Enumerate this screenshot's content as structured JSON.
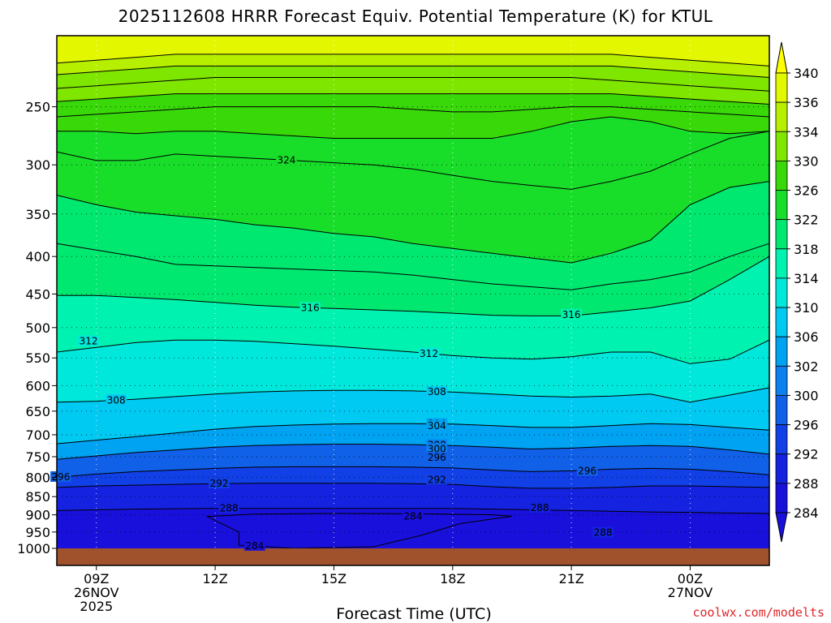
{
  "title": "2025112608 HRRR Forecast Equiv. Potential Temperature (K) for KTUL",
  "credit": "coolwx.com/modelts",
  "colors": {
    "ground": "#a0522d",
    "grid": "#000000",
    "contour": "#000000",
    "credit": "#e0262a"
  },
  "chart_data": {
    "type": "heatmap",
    "title": "2025112608 HRRR Forecast Equiv. Potential Temperature (K) for KTUL",
    "xlabel": "Forecast Time (UTC)",
    "ylabel": "",
    "y_scale": "log-pressure",
    "y_range_hpa": [
      1000,
      200
    ],
    "y_ticks": [
      250,
      300,
      350,
      400,
      450,
      500,
      550,
      600,
      650,
      700,
      750,
      800,
      850,
      900,
      950,
      1000
    ],
    "x_ticks": [
      {
        "hour": 1,
        "label": "09Z",
        "sub": [
          "26NOV",
          "2025"
        ]
      },
      {
        "hour": 4,
        "label": "12Z",
        "sub": []
      },
      {
        "hour": 7,
        "label": "15Z",
        "sub": []
      },
      {
        "hour": 10,
        "label": "18Z",
        "sub": []
      },
      {
        "hour": 13,
        "label": "21Z",
        "sub": []
      },
      {
        "hour": 16,
        "label": "00Z",
        "sub": [
          "27NOV"
        ]
      }
    ],
    "x_range_hours": [
      0,
      18
    ],
    "x": [
      0,
      1,
      2,
      3,
      4,
      5,
      6,
      7,
      8,
      9,
      10,
      11,
      12,
      13,
      14,
      15,
      16,
      17,
      18
    ],
    "colorbar": {
      "levels": [
        340,
        336,
        334,
        330,
        326,
        322,
        318,
        314,
        310,
        306,
        302,
        300,
        296,
        292,
        288,
        284
      ],
      "colors": [
        "#ffff00",
        "#e3f800",
        "#b7ef00",
        "#7fe600",
        "#39d909",
        "#18de2a",
        "#00e870",
        "#00f2b0",
        "#00e8dc",
        "#00c9f2",
        "#00a2f2",
        "#0b80ee",
        "#1060e8",
        "#1140e6",
        "#1522e0",
        "#1a10dc"
      ],
      "extend": "both"
    },
    "contour_lines": [
      {
        "theta": 288,
        "label": "288",
        "label_x": 4.35,
        "p": [
          888,
          886,
          884,
          883,
          882,
          882,
          882,
          882,
          882,
          882,
          882,
          884,
          886,
          888,
          890,
          892,
          893,
          895,
          896
        ]
      },
      {
        "theta": 292,
        "label": "292",
        "label_x": 4.1,
        "p": [
          826,
          822,
          820,
          818,
          816,
          815,
          815,
          815,
          815,
          816,
          818,
          824,
          828,
          828,
          826,
          822,
          822,
          824,
          826
        ]
      },
      {
        "theta": 296,
        "label": "296",
        "label_x": 0.1,
        "p": [
          800,
          792,
          786,
          782,
          778,
          775,
          774,
          774,
          774,
          775,
          777,
          782,
          786,
          784,
          780,
          778,
          780,
          786,
          794
        ]
      },
      {
        "theta": 300,
        "label": "300",
        "label_x": 9.6,
        "p": [
          756,
          748,
          740,
          734,
          728,
          724,
          722,
          721,
          721,
          722,
          724,
          728,
          732,
          730,
          726,
          724,
          726,
          734,
          744
        ]
      },
      {
        "theta": 304,
        "label": "304",
        "label_x": 9.6,
        "p": [
          720,
          712,
          704,
          696,
          688,
          682,
          679,
          677,
          676,
          676,
          677,
          680,
          684,
          684,
          680,
          676,
          678,
          684,
          690
        ]
      },
      {
        "theta": 308,
        "label": "308",
        "label_x": 1.5,
        "p": [
          632,
          630,
          626,
          621,
          616,
          612,
          610,
          609,
          609,
          610,
          612,
          616,
          620,
          622,
          620,
          616,
          632,
          618,
          604
        ]
      },
      {
        "theta": 312,
        "label": "312",
        "label_x": 9.4,
        "p": [
          540,
          532,
          524,
          520,
          520,
          522,
          526,
          530,
          535,
          540,
          546,
          550,
          552,
          548,
          540,
          540,
          560,
          552,
          520
        ]
      },
      {
        "theta": 316,
        "label": "316",
        "label_x": 6.4,
        "p": [
          452,
          452,
          455,
          458,
          462,
          466,
          469,
          471,
          473,
          475,
          478,
          481,
          482,
          482,
          476,
          470,
          460,
          430,
          400
        ]
      },
      {
        "theta": 320,
        "label": "",
        "label_x": -1,
        "p": [
          384,
          392,
          400,
          410,
          412,
          414,
          416,
          418,
          420,
          424,
          430,
          436,
          440,
          444,
          436,
          430,
          420,
          400,
          384
        ]
      },
      {
        "theta": 322,
        "label": "",
        "label_x": -1,
        "p": [
          330,
          340,
          348,
          352,
          356,
          362,
          366,
          372,
          376,
          384,
          390,
          396,
          402,
          408,
          396,
          380,
          340,
          322,
          316
        ]
      },
      {
        "theta": 324,
        "label": "324",
        "label_x": 5.8,
        "p": [
          288,
          296,
          296,
          290,
          292,
          294,
          296,
          298,
          300,
          304,
          310,
          316,
          320,
          324,
          316,
          306,
          290,
          276,
          270
        ]
      },
      {
        "theta": 326,
        "label": "",
        "label_x": -1,
        "p": [
          270,
          270,
          272,
          270,
          270,
          272,
          274,
          276,
          276,
          276,
          276,
          276,
          270,
          262,
          258,
          262,
          270,
          272,
          270
        ]
      },
      {
        "theta": 328,
        "label": "",
        "label_x": -1,
        "p": [
          258,
          256,
          254,
          252,
          250,
          250,
          250,
          250,
          250,
          252,
          254,
          254,
          252,
          250,
          250,
          252,
          254,
          256,
          258
        ]
      },
      {
        "theta": 330,
        "label": "",
        "label_x": -1,
        "p": [
          246,
          244,
          242,
          240,
          240,
          240,
          240,
          240,
          240,
          240,
          240,
          240,
          240,
          240,
          240,
          242,
          244,
          246,
          248
        ]
      },
      {
        "theta": 332,
        "label": "",
        "label_x": -1,
        "p": [
          236,
          234,
          232,
          230,
          228,
          228,
          228,
          228,
          228,
          228,
          228,
          228,
          228,
          228,
          230,
          232,
          234,
          236,
          238
        ]
      },
      {
        "theta": 334,
        "label": "",
        "label_x": -1,
        "p": [
          226,
          224,
          222,
          220,
          220,
          220,
          220,
          220,
          220,
          220,
          220,
          220,
          220,
          220,
          220,
          222,
          224,
          226,
          228
        ]
      },
      {
        "theta": 336,
        "label": "",
        "label_x": -1,
        "p": [
          218,
          216,
          214,
          212,
          212,
          212,
          212,
          212,
          212,
          212,
          212,
          212,
          212,
          212,
          212,
          214,
          216,
          218,
          220
        ]
      }
    ],
    "low_region_284": {
      "label": "284",
      "label_x": 9.0,
      "label_p": 904,
      "outline": [
        [
          3.8,
          905
        ],
        [
          5,
          898
        ],
        [
          7,
          896
        ],
        [
          9,
          897
        ],
        [
          11,
          900
        ],
        [
          11.5,
          904
        ],
        [
          10.2,
          925
        ],
        [
          9.2,
          960
        ],
        [
          8,
          995
        ],
        [
          6,
          1000
        ],
        [
          4.6,
          990
        ],
        [
          4.6,
          950
        ],
        [
          3.8,
          905
        ]
      ],
      "bottom_label": "284",
      "bottom_label_x": 5.0,
      "bottom_label_p": 992
    },
    "lower_288_labels": [
      {
        "text": "288",
        "x": 13.8,
        "p": 952
      }
    ],
    "extra_labels": [
      {
        "text": "292",
        "x": 9.6,
        "p": 806
      },
      {
        "text": "296",
        "x": 13.4,
        "p": 784
      },
      {
        "text": "300",
        "x": 9.6,
        "p": 732
      },
      {
        "text": "304",
        "x": 9.6,
        "p": 681
      },
      {
        "text": "308",
        "x": 9.6,
        "p": 612
      },
      {
        "text": "316",
        "x": 13.0,
        "p": 480
      },
      {
        "text": "288",
        "x": 12.2,
        "p": 880
      },
      {
        "text": "296",
        "x": 9.6,
        "p": 752
      },
      {
        "text": "312",
        "x": 0.8,
        "p": 522
      }
    ],
    "grid": true
  }
}
